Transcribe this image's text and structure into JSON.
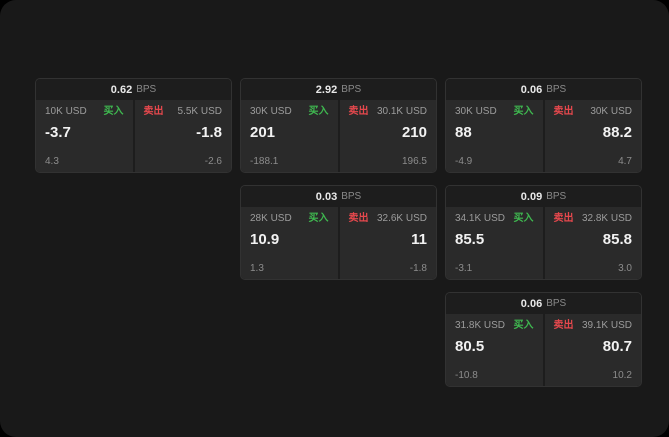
{
  "labels": {
    "bps": "BPS",
    "buy": "买入",
    "sell": "卖出"
  },
  "colors": {
    "buy_green": "#3fb950",
    "sell_red": "#e5484d",
    "background": "#191919",
    "panel": "#2a2a2a"
  },
  "cards": [
    {
      "bps": "0.62",
      "buy": {
        "size": "10K USD",
        "price": "-3.7",
        "sub": "4.3"
      },
      "sell": {
        "size": "5.5K USD",
        "price": "-1.8",
        "sub": "-2.6"
      }
    },
    {
      "bps": "2.92",
      "buy": {
        "size": "30K USD",
        "price": "201",
        "sub": "-188.1"
      },
      "sell": {
        "size": "30.1K USD",
        "price": "210",
        "sub": "196.5"
      }
    },
    {
      "bps": "0.06",
      "buy": {
        "size": "30K USD",
        "price": "88",
        "sub": "-4.9"
      },
      "sell": {
        "size": "30K USD",
        "price": "88.2",
        "sub": "4.7"
      }
    },
    {
      "bps": "0.03",
      "buy": {
        "size": "28K USD",
        "price": "10.9",
        "sub": "1.3"
      },
      "sell": {
        "size": "32.6K USD",
        "price": "11",
        "sub": "-1.8"
      }
    },
    {
      "bps": "0.09",
      "buy": {
        "size": "34.1K USD",
        "price": "85.5",
        "sub": "-3.1"
      },
      "sell": {
        "size": "32.8K USD",
        "price": "85.8",
        "sub": "3.0"
      }
    },
    {
      "bps": "0.06",
      "buy": {
        "size": "31.8K USD",
        "price": "80.5",
        "sub": "-10.8"
      },
      "sell": {
        "size": "39.1K USD",
        "price": "80.7",
        "sub": "10.2"
      }
    }
  ]
}
